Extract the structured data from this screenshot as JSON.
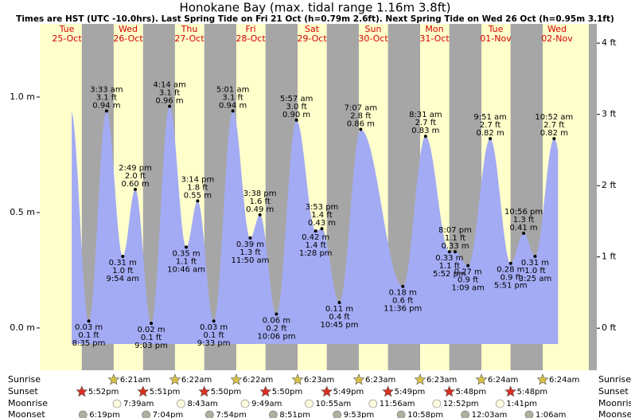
{
  "chart_data": {
    "type": "area",
    "title": "Honokane Bay (max. tidal range 1.16m 3.8ft)",
    "subtitle": "Times are HST (UTC -10.0hrs). Last Spring Tide on Fri 21 Oct (h=0.79m 2.6ft). Next Spring Tide on Wed 26 Oct (h=0.95m 3.1ft)",
    "color": "#a3abf4",
    "ylim": [
      -0.183,
      1.317
    ],
    "yticks": [
      {
        "value": 0,
        "label": "0.0 m"
      },
      {
        "value": 0.5,
        "label": "0.5 m"
      },
      {
        "value": 1,
        "label": "1.0 m"
      }
    ],
    "y2lim": [
      -0.59,
      4.27
    ],
    "y2ticks": [
      {
        "value": 0,
        "label": "0 ft"
      },
      {
        "value": 1,
        "label": "1 ft"
      },
      {
        "value": 2,
        "label": "2 ft"
      },
      {
        "value": 3,
        "label": "3 ft"
      },
      {
        "value": 4,
        "label": "4 ft"
      }
    ],
    "rows": [
      "Sunrise",
      "Sunset",
      "Moonrise",
      "Moonset"
    ],
    "days": [
      {
        "weekday": "Tue",
        "date": "25-Oct",
        "sunrise": null,
        "sunset": "5:52pm",
        "moonrise": null,
        "moonset": "6:19pm",
        "tides": [
          {
            "time": "8:35 pm",
            "height_m": 0.03,
            "height_m_label": "0.03 m",
            "height_ft": 0.1,
            "height_ft_label": "0.1 ft"
          }
        ]
      },
      {
        "weekday": "Wed",
        "date": "26-Oct",
        "sunrise": "6:21am",
        "sunset": "5:51pm",
        "moonrise": "7:39am",
        "moonset": "7:04pm",
        "tides": [
          {
            "time": "3:33 am",
            "height_m": 0.94,
            "height_m_label": "0.94 m",
            "height_ft": 3.1,
            "height_ft_label": "3.1 ft"
          },
          {
            "time": "9:54 am",
            "height_m": 0.31,
            "height_m_label": "0.31 m",
            "height_ft": 1.0,
            "height_ft_label": "1.0 ft"
          },
          {
            "time": "2:49 pm",
            "height_m": 0.6,
            "height_m_label": "0.60 m",
            "height_ft": 2.0,
            "height_ft_label": "2.0 ft"
          },
          {
            "time": "9:03 pm",
            "height_m": 0.02,
            "height_m_label": "0.02 m",
            "height_ft": 0.1,
            "height_ft_label": "0.1 ft"
          }
        ]
      },
      {
        "weekday": "Thu",
        "date": "27-Oct",
        "sunrise": "6:22am",
        "sunset": "5:50pm",
        "moonrise": "8:43am",
        "moonset": "7:54pm",
        "tides": [
          {
            "time": "4:14 am",
            "height_m": 0.96,
            "height_m_label": "0.96 m",
            "height_ft": 3.1,
            "height_ft_label": "3.1 ft"
          },
          {
            "time": "10:46 am",
            "height_m": 0.35,
            "height_m_label": "0.35 m",
            "height_ft": 1.1,
            "height_ft_label": "1.1 ft"
          },
          {
            "time": "3:14 pm",
            "height_m": 0.55,
            "height_m_label": "0.55 m",
            "height_ft": 1.8,
            "height_ft_label": "1.8 ft"
          },
          {
            "time": "9:33 pm",
            "height_m": 0.03,
            "height_m_label": "0.03 m",
            "height_ft": 0.1,
            "height_ft_label": "0.1 ft"
          }
        ]
      },
      {
        "weekday": "Fri",
        "date": "28-Oct",
        "sunrise": "6:22am",
        "sunset": "5:50pm",
        "moonrise": "9:49am",
        "moonset": "8:51pm",
        "tides": [
          {
            "time": "5:01 am",
            "height_m": 0.94,
            "height_m_label": "0.94 m",
            "height_ft": 3.1,
            "height_ft_label": "3.1 ft"
          },
          {
            "time": "11:50 am",
            "height_m": 0.39,
            "height_m_label": "0.39 m",
            "height_ft": 1.3,
            "height_ft_label": "1.3 ft"
          },
          {
            "time": "3:38 pm",
            "height_m": 0.49,
            "height_m_label": "0.49 m",
            "height_ft": 1.6,
            "height_ft_label": "1.6 ft"
          },
          {
            "time": "10:06 pm",
            "height_m": 0.06,
            "height_m_label": "0.06 m",
            "height_ft": 0.2,
            "height_ft_label": "0.2 ft"
          }
        ]
      },
      {
        "weekday": "Sat",
        "date": "29-Oct",
        "sunrise": "6:23am",
        "sunset": "5:49pm",
        "moonrise": "10:55am",
        "moonset": "9:53pm",
        "tides": [
          {
            "time": "5:57 am",
            "height_m": 0.9,
            "height_m_label": "0.90 m",
            "height_ft": 3.0,
            "height_ft_label": "3.0 ft"
          },
          {
            "time": "1:28 pm",
            "height_m": 0.42,
            "height_m_label": "0.42 m",
            "height_ft": 1.4,
            "height_ft_label": "1.4 ft"
          },
          {
            "time": "3:53 pm",
            "height_m": 0.43,
            "height_m_label": "0.43 m",
            "height_ft": 1.4,
            "height_ft_label": "1.4 ft"
          },
          {
            "time": "10:45 pm",
            "height_m": 0.11,
            "height_m_label": "0.11 m",
            "height_ft": 0.4,
            "height_ft_label": "0.4 ft"
          }
        ]
      },
      {
        "weekday": "Sun",
        "date": "30-Oct",
        "sunrise": "6:23am",
        "sunset": "5:49pm",
        "moonrise": "11:56am",
        "moonset": "10:58pm",
        "tides": [
          {
            "time": "7:07 am",
            "height_m": 0.86,
            "height_m_label": "0.86 m",
            "height_ft": 2.8,
            "height_ft_label": "2.8 ft"
          },
          {
            "time": "11:36 pm",
            "height_m": 0.18,
            "height_m_label": "0.18 m",
            "height_ft": 0.6,
            "height_ft_label": "0.6 ft"
          }
        ]
      },
      {
        "weekday": "Mon",
        "date": "31-Oct",
        "sunrise": "6:23am",
        "sunset": "5:48pm",
        "moonrise": "12:52pm",
        "moonset": null,
        "tides": [
          {
            "time": "8:31 am",
            "height_m": 0.83,
            "height_m_label": "0.83 m",
            "height_ft": 2.7,
            "height_ft_label": "2.7 ft"
          },
          {
            "time": "5:52 pm",
            "height_m": 0.33,
            "height_m_label": "0.33 m",
            "height_ft": 1.1,
            "height_ft_label": "1.1 ft"
          },
          {
            "time": "8:07 pm",
            "height_m": 0.33,
            "height_m_label": "0.33 m",
            "height_ft": 1.1,
            "height_ft_label": "1.1 ft"
          }
        ]
      },
      {
        "weekday": "Tue",
        "date": "01-Nov",
        "sunrise": "6:24am",
        "sunset": "5:48pm",
        "moonrise": "1:41pm",
        "moonset": "12:03am",
        "tides": [
          {
            "time": "1:09 am",
            "height_m": 0.27,
            "height_m_label": "0.27 m",
            "height_ft": 0.9,
            "height_ft_label": "0.9 ft"
          },
          {
            "time": "9:51 am",
            "height_m": 0.82,
            "height_m_label": "0.82 m",
            "height_ft": 2.7,
            "height_ft_label": "2.7 ft"
          },
          {
            "time": "5:51 pm",
            "height_m": 0.28,
            "height_m_label": "0.28 m",
            "height_ft": 0.9,
            "height_ft_label": "0.9 ft"
          },
          {
            "time": "10:56 pm",
            "height_m": 0.41,
            "height_m_label": "0.41 m",
            "height_ft": 1.3,
            "height_ft_label": "1.3 ft"
          }
        ]
      },
      {
        "weekday": "Wed",
        "date": "02-Nov",
        "sunrise": "6:24am",
        "sunset": null,
        "moonrise": null,
        "moonset": "1:06am",
        "tides": [
          {
            "time": "3:25 am",
            "height_m": 0.31,
            "height_m_label": "0.31 m",
            "height_ft": 1.0,
            "height_ft_label": "1.0 ft"
          },
          {
            "time": "10:52 am",
            "height_m": 0.82,
            "height_m_label": "0.82 m",
            "height_ft": 2.7,
            "height_ft_label": "2.7 ft"
          }
        ]
      }
    ]
  }
}
